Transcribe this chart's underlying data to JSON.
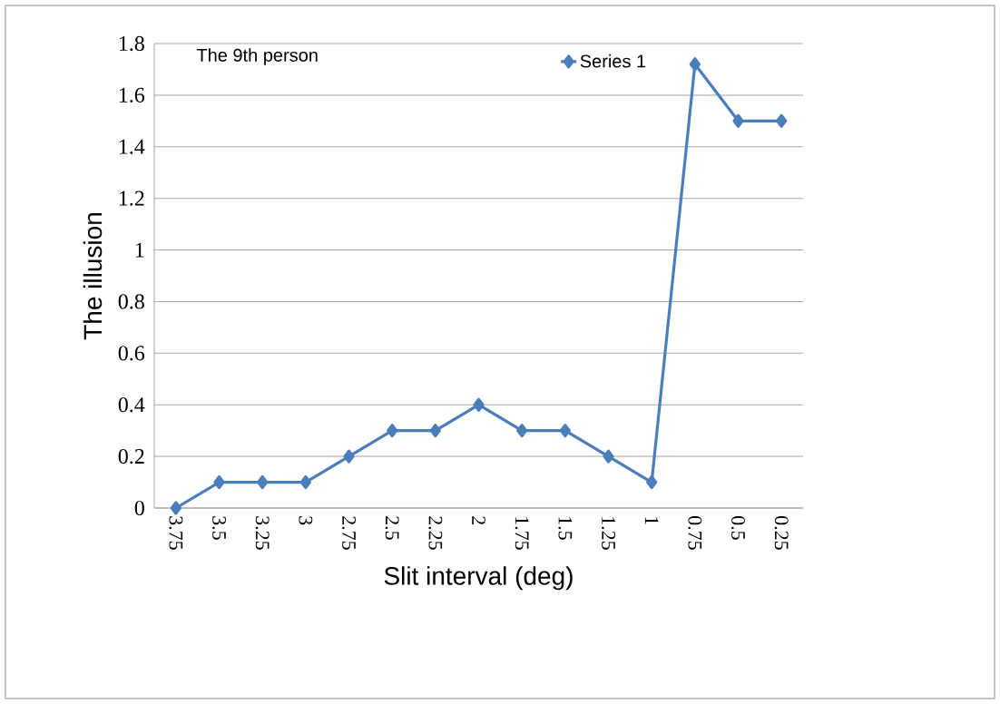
{
  "chart_data": {
    "type": "line",
    "title": "The 9th person",
    "xlabel": "Slit interval (deg)",
    "ylabel": "The illusion",
    "categories": [
      "3.75",
      "3.5",
      "3.25",
      "3",
      "2.75",
      "2.5",
      "2.25",
      "2",
      "1.75",
      "1.5",
      "1.25",
      "1",
      "0.75",
      "0.5",
      "0.25"
    ],
    "series": [
      {
        "name": "Series 1",
        "color": "#4a7ebb",
        "values": [
          0,
          0.1,
          0.1,
          0.1,
          0.2,
          0.3,
          0.3,
          0.4,
          0.3,
          0.3,
          0.2,
          0.1,
          1.72,
          1.5,
          1.5
        ]
      }
    ],
    "ylim": [
      0,
      1.8
    ],
    "yticks": [
      0,
      0.2,
      0.4,
      0.6,
      0.8,
      1,
      1.2,
      1.4,
      1.6,
      1.8
    ],
    "grid": "y",
    "legend": "top right",
    "marker": "diamond",
    "line_style": "solid"
  }
}
